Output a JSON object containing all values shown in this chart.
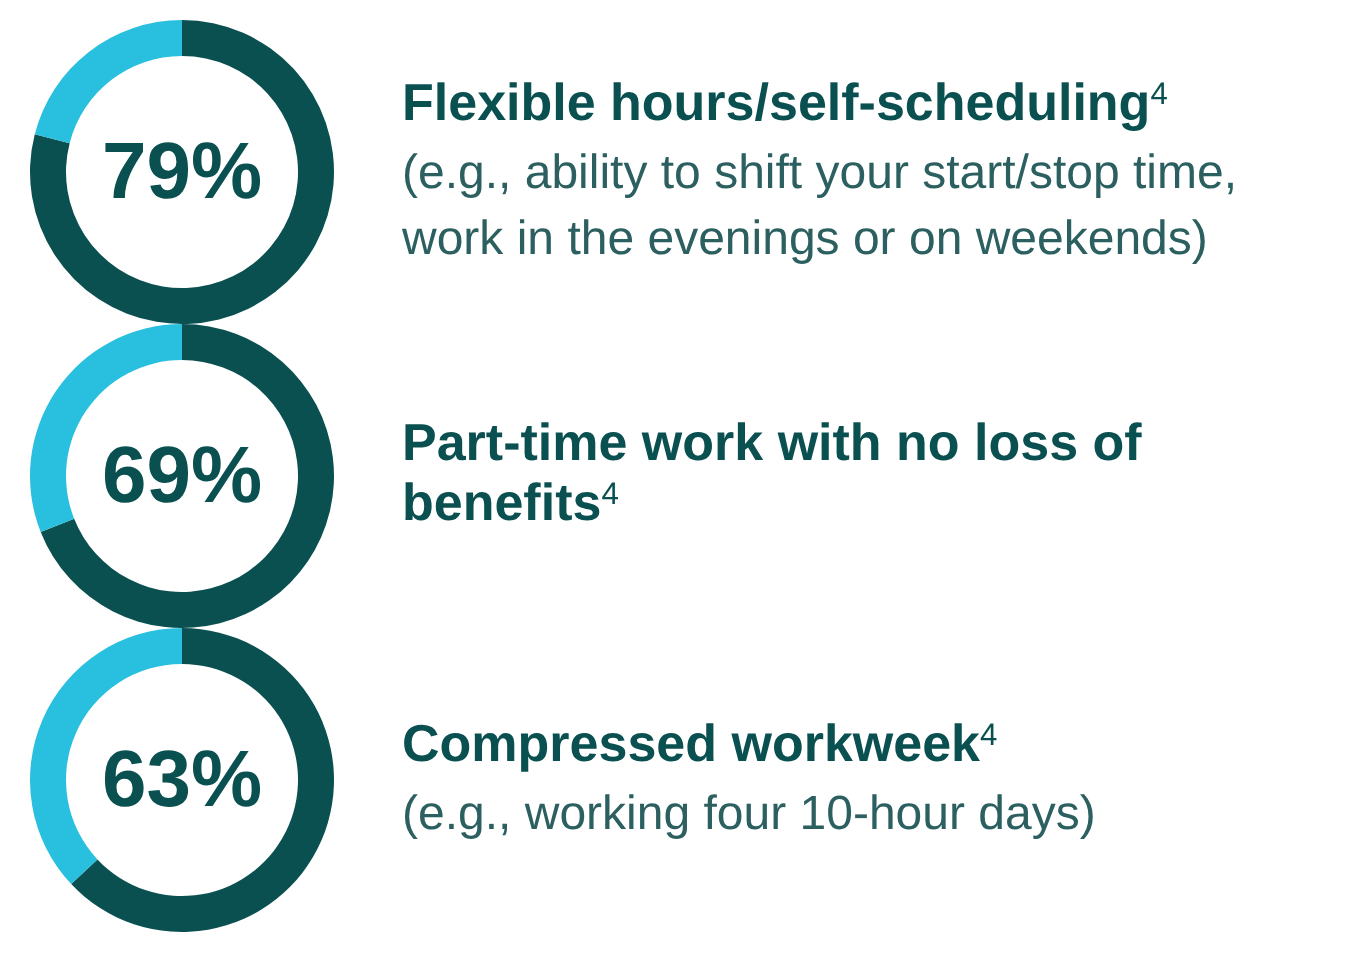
{
  "chart_data": [
    {
      "type": "donut",
      "title": "Flexible hours/self-scheduling$^{4}$",
      "subtitle": "(e.g., ability to shift your start/stop time, work in the evenings or on weekends)",
      "categories": [
        null,
        null
      ],
      "values": [
        79,
        21
      ],
      "colors": [
        "#0b5050",
        "#29bfdf"
      ],
      "annotations": [
        "79%"
      ]
    },
    {
      "type": "donut",
      "title": "Part-time work with no loss of benefits$^{4}$",
      "categories": [
        null,
        null
      ],
      "values": [
        69,
        31
      ],
      "colors": [
        "#0b5050",
        "#29bfdf"
      ],
      "annotations": [
        "69%"
      ]
    },
    {
      "type": "donut",
      "title": "Compressed workweek$^{4}$",
      "subtitle": "(e.g., working four 10-hour days)",
      "categories": [
        null,
        null
      ],
      "values": [
        63,
        37
      ],
      "colors": [
        "#0b5050",
        "#29bfdf"
      ],
      "annotations": [
        "63%"
      ]
    }
  ]
}
